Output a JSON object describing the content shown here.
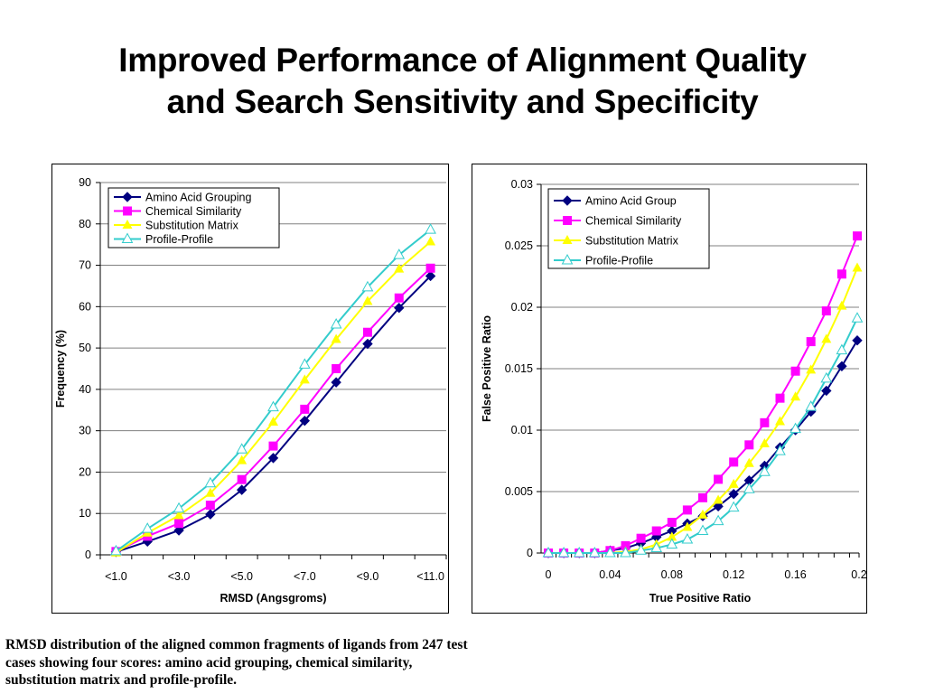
{
  "title": {
    "line1": "Improved Performance of Alignment Quality",
    "line2": "and Search Sensitivity and Specificity"
  },
  "caption": "RMSD distribution of the aligned common fragments of  ligands from 247 test cases showing four scores: amino acid grouping, chemical similarity, substitution matrix and profile-profile.",
  "colors": {
    "amino": "#000080",
    "chemical": "#FF00FF",
    "substitution": "#FFFF00",
    "profile": "#33CCCC",
    "grid": "#808080"
  },
  "chart_data": [
    {
      "id": "left",
      "type": "line",
      "title": "",
      "xlabel": "RMSD (Angsgroms)",
      "ylabel": "Frequency (%)",
      "categories": [
        "<1.0",
        "<2.0",
        "<3.0",
        "<4.0",
        "<5.0",
        "<6.0",
        "<7.0",
        "<8.0",
        "<9.0",
        "<10.0",
        "<11.0"
      ],
      "x_tick_labels_shown": [
        "<1.0",
        "<3.0",
        "<5.0",
        "<7.0",
        "<9.0",
        "<11.0"
      ],
      "ylim": [
        0,
        90
      ],
      "y_ticks": [
        0,
        10,
        20,
        30,
        40,
        50,
        60,
        70,
        80,
        90
      ],
      "y_tick_labels": [
        "0",
        "10",
        "20",
        "30",
        "40",
        "50",
        "60",
        "70",
        "80",
        "90"
      ],
      "grid": true,
      "legend_position": "top-left",
      "series": [
        {
          "name": "Amino Acid Grouping",
          "key": "amino",
          "marker": "diamond",
          "values": [
            0.7,
            3.2,
            5.9,
            9.8,
            15.7,
            23.4,
            32.4,
            41.7,
            51.0,
            59.7,
            67.4
          ]
        },
        {
          "name": "Chemical Similarity",
          "key": "chemical",
          "marker": "square",
          "values": [
            0.8,
            4.5,
            7.6,
            12.0,
            18.2,
            26.3,
            35.2,
            45.0,
            53.8,
            62.1,
            69.3
          ]
        },
        {
          "name": "Substitution Matrix",
          "key": "substitution",
          "marker": "triangle",
          "values": [
            0.5,
            5.3,
            9.5,
            14.9,
            22.8,
            32.1,
            42.3,
            52.1,
            61.3,
            69.1,
            75.7
          ]
        },
        {
          "name": "Profile-Profile",
          "key": "profile",
          "marker": "triangle-open",
          "values": [
            0.9,
            6.3,
            11.2,
            17.3,
            25.5,
            35.7,
            46.0,
            55.7,
            64.7,
            72.5,
            78.6
          ]
        }
      ]
    },
    {
      "id": "right",
      "type": "line",
      "title": "",
      "xlabel": "True Positive Ratio",
      "ylabel": "False Positive Ratio",
      "x": [
        0,
        0.01,
        0.02,
        0.03,
        0.04,
        0.05,
        0.06,
        0.07,
        0.08,
        0.09,
        0.1,
        0.11,
        0.12,
        0.13,
        0.14,
        0.15,
        0.16,
        0.17,
        0.18,
        0.19,
        0.2
      ],
      "x_tick_labels_shown": [
        "0",
        "0.04",
        "0.08",
        "0.12",
        "0.16",
        "0.2"
      ],
      "xlim": [
        0,
        0.2
      ],
      "ylim": [
        0,
        0.03
      ],
      "y_ticks": [
        0,
        0.005,
        0.01,
        0.015,
        0.02,
        0.025,
        0.03
      ],
      "y_tick_labels": [
        "0",
        "0.005",
        "0.01",
        "0.015",
        "0.02",
        "0.025",
        "0.03"
      ],
      "grid": true,
      "legend_position": "top-left",
      "series": [
        {
          "name": "Amino Acid Group",
          "key": "amino",
          "marker": "diamond",
          "values": [
            0,
            0,
            0,
            0,
            0.0002,
            0.0004,
            0.0008,
            0.0013,
            0.0018,
            0.0024,
            0.003,
            0.0038,
            0.0048,
            0.0059,
            0.0071,
            0.0086,
            0.01,
            0.0115,
            0.0132,
            0.0152,
            0.0173
          ]
        },
        {
          "name": "Chemical Similarity",
          "key": "chemical",
          "marker": "square",
          "values": [
            0,
            0,
            0,
            0,
            0.0002,
            0.0006,
            0.0012,
            0.0018,
            0.0025,
            0.0035,
            0.0045,
            0.006,
            0.0074,
            0.0088,
            0.0106,
            0.0126,
            0.0148,
            0.0172,
            0.0197,
            0.0227,
            0.0258
          ]
        },
        {
          "name": "Substitution Matrix",
          "key": "substitution",
          "marker": "triangle",
          "values": [
            0,
            0,
            0,
            0,
            0,
            0.0001,
            0.0003,
            0.0007,
            0.0013,
            0.0021,
            0.0031,
            0.0043,
            0.0056,
            0.0073,
            0.0089,
            0.0107,
            0.0127,
            0.0149,
            0.0174,
            0.0201,
            0.0232
          ]
        },
        {
          "name": "Profile-Profile",
          "key": "profile",
          "marker": "triangle-open",
          "values": [
            0,
            0,
            0,
            0,
            0,
            0,
            0.0002,
            0.0004,
            0.0007,
            0.0011,
            0.0018,
            0.0026,
            0.0037,
            0.0052,
            0.0066,
            0.0083,
            0.0101,
            0.0119,
            0.0142,
            0.0165,
            0.0191
          ]
        }
      ]
    }
  ]
}
